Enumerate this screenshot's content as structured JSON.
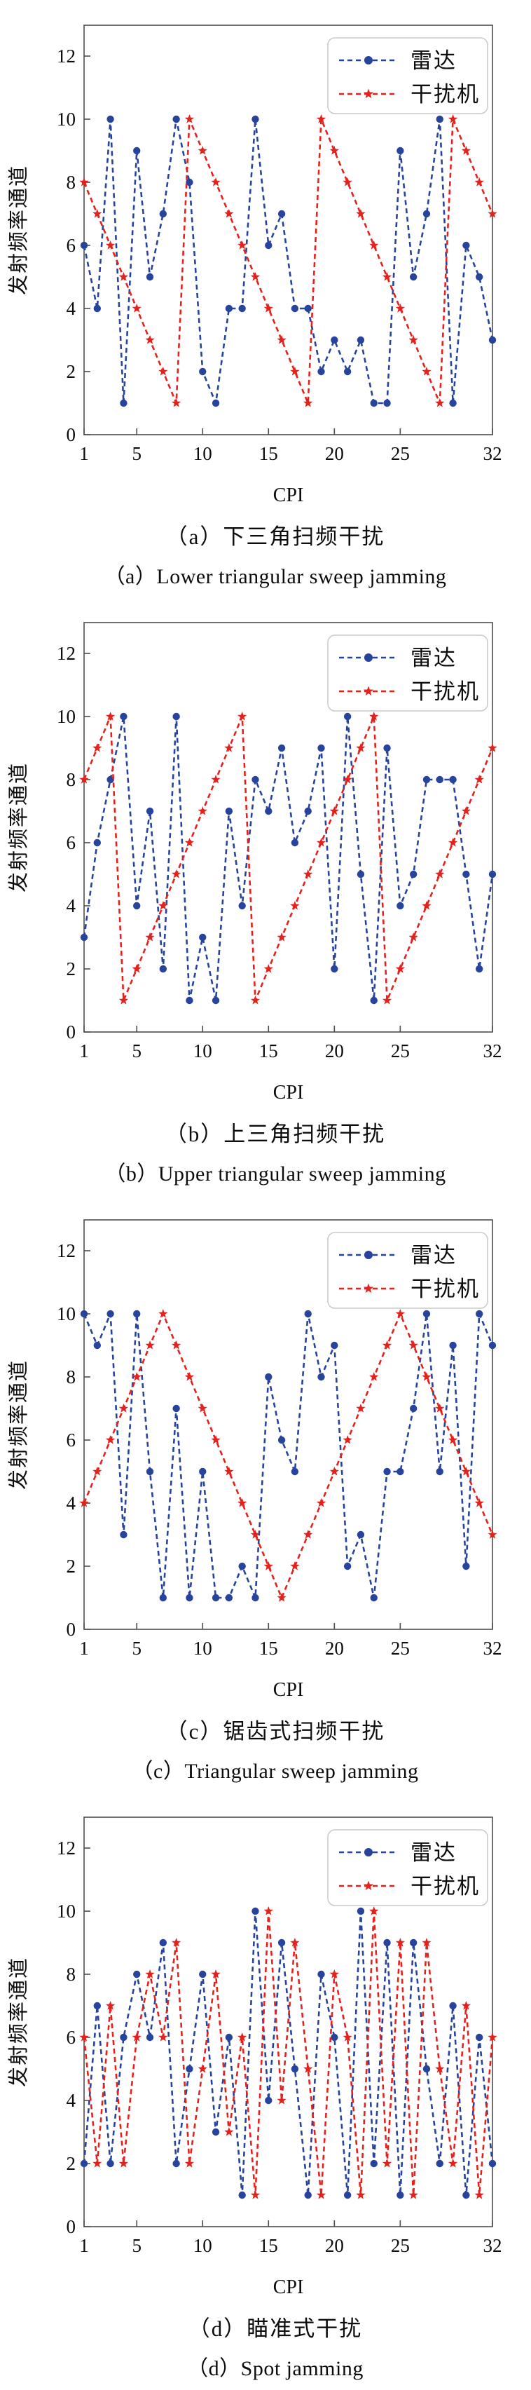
{
  "page": {
    "background": "#ffffff"
  },
  "colors": {
    "radar": "#27449C",
    "jammer": "#E3221D",
    "axis": "#4d4d4d",
    "text": "#0d0d0d",
    "legend_border": "#c9c9c9",
    "legend_fill": "#ffffff"
  },
  "legend": {
    "position": "top-right",
    "labels": [
      "雷达",
      "干扰机"
    ]
  },
  "chart_data": [
    {
      "id": "a",
      "type": "line",
      "caption_zh": "（a）下三角扫频干扰",
      "caption_en": "（a）Lower triangular sweep jamming",
      "xlabel": "CPI",
      "ylabel": "发射频率通道",
      "x": [
        1,
        2,
        3,
        4,
        5,
        6,
        7,
        8,
        9,
        10,
        11,
        12,
        13,
        14,
        15,
        16,
        17,
        18,
        19,
        20,
        21,
        22,
        23,
        24,
        25,
        26,
        27,
        28,
        29,
        30,
        31,
        32
      ],
      "xticks": [
        1,
        5,
        10,
        15,
        20,
        25,
        32
      ],
      "yticks": [
        0,
        2,
        4,
        6,
        8,
        10,
        12
      ],
      "xlim": [
        1,
        32
      ],
      "ylim": [
        0,
        13
      ],
      "grid": false,
      "legend_position": "top-right",
      "series": [
        {
          "name": "雷达",
          "color": "#27449C",
          "marker": "circle",
          "linestyle": "dashed",
          "values": [
            6,
            4,
            10,
            1,
            9,
            5,
            7,
            10,
            8,
            2,
            1,
            4,
            4,
            10,
            6,
            7,
            4,
            4,
            2,
            3,
            2,
            3,
            1,
            1,
            9,
            5,
            7,
            10,
            1,
            6,
            5,
            3
          ]
        },
        {
          "name": "干扰机",
          "color": "#E3221D",
          "marker": "star",
          "linestyle": "dashed",
          "values": [
            8,
            7,
            6,
            5,
            4,
            3,
            2,
            1,
            10,
            9,
            8,
            7,
            6,
            5,
            4,
            3,
            2,
            1,
            10,
            9,
            8,
            7,
            6,
            5,
            4,
            3,
            2,
            1,
            10,
            9,
            8,
            7
          ]
        }
      ]
    },
    {
      "id": "b",
      "type": "line",
      "caption_zh": "（b）上三角扫频干扰",
      "caption_en": "（b）Upper triangular sweep jamming",
      "xlabel": "CPI",
      "ylabel": "发射频率通道",
      "x": [
        1,
        2,
        3,
        4,
        5,
        6,
        7,
        8,
        9,
        10,
        11,
        12,
        13,
        14,
        15,
        16,
        17,
        18,
        19,
        20,
        21,
        22,
        23,
        24,
        25,
        26,
        27,
        28,
        29,
        30,
        31,
        32
      ],
      "xticks": [
        1,
        5,
        10,
        15,
        20,
        25,
        32
      ],
      "yticks": [
        0,
        2,
        4,
        6,
        8,
        10,
        12
      ],
      "xlim": [
        1,
        32
      ],
      "ylim": [
        0,
        13
      ],
      "grid": false,
      "legend_position": "top-right",
      "series": [
        {
          "name": "雷达",
          "color": "#27449C",
          "marker": "circle",
          "linestyle": "dashed",
          "values": [
            3,
            6,
            8,
            10,
            4,
            7,
            2,
            10,
            1,
            3,
            1,
            7,
            4,
            8,
            7,
            9,
            6,
            7,
            9,
            2,
            10,
            5,
            1,
            9,
            4,
            5,
            8,
            8,
            8,
            5,
            2,
            5
          ]
        },
        {
          "name": "干扰机",
          "color": "#E3221D",
          "marker": "star",
          "linestyle": "dashed",
          "values": [
            8,
            9,
            10,
            1,
            2,
            3,
            4,
            5,
            6,
            7,
            8,
            9,
            10,
            1,
            2,
            3,
            4,
            5,
            6,
            7,
            8,
            9,
            10,
            1,
            2,
            3,
            4,
            5,
            6,
            7,
            8,
            9
          ]
        }
      ]
    },
    {
      "id": "c",
      "type": "line",
      "caption_zh": "（c）锯齿式扫频干扰",
      "caption_en": "（c）Triangular sweep jamming",
      "xlabel": "CPI",
      "ylabel": "发射频率通道",
      "x": [
        1,
        2,
        3,
        4,
        5,
        6,
        7,
        8,
        9,
        10,
        11,
        12,
        13,
        14,
        15,
        16,
        17,
        18,
        19,
        20,
        21,
        22,
        23,
        24,
        25,
        26,
        27,
        28,
        29,
        30,
        31,
        32
      ],
      "xticks": [
        1,
        5,
        10,
        15,
        20,
        25,
        32
      ],
      "yticks": [
        0,
        2,
        4,
        6,
        8,
        10,
        12
      ],
      "xlim": [
        1,
        32
      ],
      "ylim": [
        0,
        13
      ],
      "grid": false,
      "legend_position": "top-right",
      "series": [
        {
          "name": "雷达",
          "color": "#27449C",
          "marker": "circle",
          "linestyle": "dashed",
          "values": [
            10,
            9,
            10,
            3,
            10,
            5,
            1,
            7,
            1,
            5,
            1,
            1,
            2,
            1,
            8,
            6,
            5,
            10,
            8,
            9,
            2,
            3,
            1,
            5,
            5,
            7,
            10,
            5,
            9,
            2,
            10,
            9
          ]
        },
        {
          "name": "干扰机",
          "color": "#E3221D",
          "marker": "star",
          "linestyle": "dashed",
          "values": [
            4,
            5,
            6,
            7,
            8,
            9,
            10,
            9,
            8,
            7,
            6,
            5,
            4,
            3,
            2,
            1,
            2,
            3,
            4,
            5,
            6,
            7,
            8,
            9,
            10,
            9,
            8,
            7,
            6,
            5,
            4,
            3
          ]
        }
      ]
    },
    {
      "id": "d",
      "type": "line",
      "caption_zh": "（d）瞄准式干扰",
      "caption_en": "（d）Spot jamming",
      "xlabel": "CPI",
      "ylabel": "发射频率通道",
      "x": [
        1,
        2,
        3,
        4,
        5,
        6,
        7,
        8,
        9,
        10,
        11,
        12,
        13,
        14,
        15,
        16,
        17,
        18,
        19,
        20,
        21,
        22,
        23,
        24,
        25,
        26,
        27,
        28,
        29,
        30,
        31,
        32
      ],
      "xticks": [
        1,
        5,
        10,
        15,
        20,
        25,
        32
      ],
      "yticks": [
        0,
        2,
        4,
        6,
        8,
        10,
        12
      ],
      "xlim": [
        1,
        32
      ],
      "ylim": [
        0,
        13
      ],
      "grid": false,
      "legend_position": "top-right",
      "series": [
        {
          "name": "雷达",
          "color": "#27449C",
          "marker": "circle",
          "linestyle": "dashed",
          "values": [
            2,
            7,
            2,
            6,
            8,
            6,
            9,
            2,
            5,
            8,
            3,
            6,
            1,
            10,
            4,
            9,
            5,
            1,
            8,
            6,
            1,
            10,
            2,
            9,
            1,
            9,
            5,
            2,
            7,
            1,
            6,
            2
          ]
        },
        {
          "name": "干扰机",
          "color": "#E3221D",
          "marker": "star",
          "linestyle": "dashed",
          "values": [
            6,
            2,
            7,
            2,
            6,
            8,
            6,
            9,
            2,
            5,
            8,
            3,
            6,
            1,
            10,
            4,
            9,
            5,
            1,
            8,
            6,
            1,
            10,
            2,
            9,
            1,
            9,
            5,
            2,
            7,
            1,
            6
          ]
        }
      ]
    }
  ]
}
